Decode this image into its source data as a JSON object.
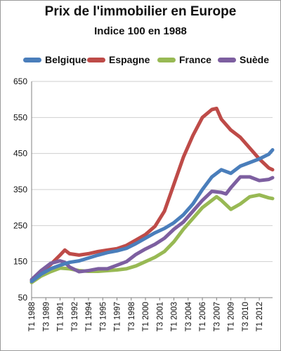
{
  "chart_data": {
    "type": "line",
    "title": "Prix de l'immobilier  en Europe",
    "subtitle": "Indice 100 en 1988",
    "xlabel": "",
    "ylabel": "",
    "ylim": [
      50,
      650
    ],
    "yticks": [
      50,
      150,
      250,
      350,
      450,
      550,
      650
    ],
    "grid": true,
    "legend_position": "top",
    "xtick_labels": [
      "T1 1988",
      "T3 1989",
      "T1 1991",
      "T3 1992",
      "T1 1994",
      "T3 1995",
      "T1 1997",
      "T3 1998",
      "T1 2000",
      "T3 2001",
      "T1 2003",
      "T3 2004",
      "T1 2006",
      "T3 2007",
      "T1 2009",
      "T3 2010",
      "T1 2012"
    ],
    "x_start": 1988.0,
    "x_end": 2013.4,
    "series": [
      {
        "name": "Belgique",
        "color": "#4a7ebb",
        "x": [
          1988.0,
          1989.0,
          1990.0,
          1991.0,
          1992.0,
          1993.0,
          1994.0,
          1995.0,
          1996.0,
          1997.0,
          1998.0,
          1999.0,
          2000.0,
          2001.0,
          2002.0,
          2003.0,
          2004.0,
          2005.0,
          2006.0,
          2007.0,
          2008.0,
          2009.0,
          2010.0,
          2011.0,
          2012.0,
          2013.0,
          2013.4
        ],
        "values": [
          95,
          115,
          130,
          140,
          148,
          152,
          160,
          168,
          175,
          180,
          187,
          200,
          215,
          230,
          242,
          258,
          280,
          310,
          350,
          385,
          405,
          395,
          415,
          425,
          435,
          448,
          460
        ]
      },
      {
        "name": "Espagne",
        "color": "#be4b48",
        "x": [
          1988.0,
          1989.0,
          1990.0,
          1991.0,
          1991.5,
          1992.0,
          1993.0,
          1994.0,
          1995.0,
          1996.0,
          1997.0,
          1998.0,
          1999.0,
          2000.0,
          2001.0,
          2002.0,
          2003.0,
          2004.0,
          2005.0,
          2006.0,
          2007.0,
          2007.5,
          2008.0,
          2009.0,
          2010.0,
          2011.0,
          2012.0,
          2013.0,
          2013.4
        ],
        "values": [
          98,
          122,
          142,
          168,
          182,
          172,
          168,
          172,
          178,
          182,
          186,
          195,
          210,
          225,
          248,
          290,
          365,
          440,
          500,
          550,
          572,
          575,
          545,
          515,
          495,
          465,
          435,
          410,
          405
        ]
      },
      {
        "name": "France",
        "color": "#98b954",
        "x": [
          1988.0,
          1989.0,
          1990.0,
          1991.0,
          1992.0,
          1993.0,
          1994.0,
          1995.0,
          1996.0,
          1997.0,
          1998.0,
          1999.0,
          2000.0,
          2001.0,
          2002.0,
          2003.0,
          2004.0,
          2005.0,
          2006.0,
          2007.0,
          2007.5,
          2008.0,
          2009.0,
          2010.0,
          2011.0,
          2012.0,
          2013.0,
          2013.4
        ],
        "values": [
          92,
          110,
          122,
          132,
          130,
          125,
          123,
          123,
          125,
          127,
          130,
          138,
          150,
          162,
          178,
          205,
          240,
          270,
          300,
          320,
          330,
          320,
          295,
          310,
          330,
          335,
          327,
          325
        ]
      },
      {
        "name": "Suède",
        "color": "#7d5fa0",
        "x": [
          1988.0,
          1989.0,
          1990.0,
          1991.0,
          1991.5,
          1992.0,
          1993.0,
          1994.0,
          1995.0,
          1996.0,
          1997.0,
          1998.0,
          1999.0,
          2000.0,
          2001.0,
          2002.0,
          2003.0,
          2004.0,
          2005.0,
          2006.0,
          2007.0,
          2008.0,
          2008.5,
          2009.0,
          2010.0,
          2011.0,
          2012.0,
          2013.0,
          2013.4
        ],
        "values": [
          100,
          125,
          145,
          152,
          148,
          135,
          122,
          125,
          130,
          130,
          140,
          150,
          170,
          185,
          198,
          215,
          240,
          260,
          290,
          320,
          345,
          342,
          338,
          355,
          385,
          385,
          375,
          378,
          383
        ]
      }
    ]
  }
}
